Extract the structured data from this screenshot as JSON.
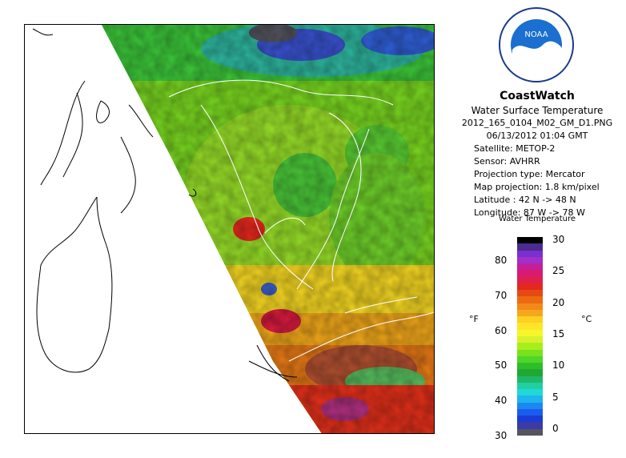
{
  "header": {
    "brand": "CoastWatch",
    "product": "Water Surface Temperature",
    "filename": "2012_165_0104_M02_GM_D1.PNG",
    "datetime": "06/13/2012   01:04 GMT",
    "satellite": "Satellite: METOP-2",
    "sensor": "Sensor: AVHRR",
    "projection_type": "Projection type:  Mercator",
    "map_projection": "Map projection: 1.8 km/pixel",
    "latitude": "Latitude : 42 N -> 48 N",
    "longitude": "Longitude: 87 W -> 78 W"
  },
  "logo": {
    "text": "NOAA",
    "icon": "noaa-logo-icon"
  },
  "legend": {
    "title": "Water Temperature",
    "unit_f": "°F",
    "unit_c": "°C",
    "f_ticks": [
      "30",
      "40",
      "50",
      "60",
      "70",
      "80"
    ],
    "c_ticks": [
      "0",
      "5",
      "10",
      "15",
      "20",
      "25",
      "30"
    ],
    "colors": [
      "#000000",
      "#4b2b8f",
      "#7a2fd0",
      "#a12fc9",
      "#c31f9a",
      "#d81a70",
      "#e0204b",
      "#e4281e",
      "#e44a12",
      "#ee6a10",
      "#f4881a",
      "#f6a61c",
      "#ffd020",
      "#ffe42a",
      "#f6f62a",
      "#d8f22a",
      "#a8ee1c",
      "#78e21c",
      "#4ed628",
      "#2ebe2a",
      "#20a832",
      "#1fb86a",
      "#22cfa0",
      "#20d8d8",
      "#1eb4ee",
      "#1b88f0",
      "#1a5cf0",
      "#1a3cd2",
      "#3b3ba8",
      "#55555e"
    ]
  },
  "map": {
    "lat_range": [
      42,
      48
    ],
    "lon_range": [
      -87,
      -78
    ]
  }
}
